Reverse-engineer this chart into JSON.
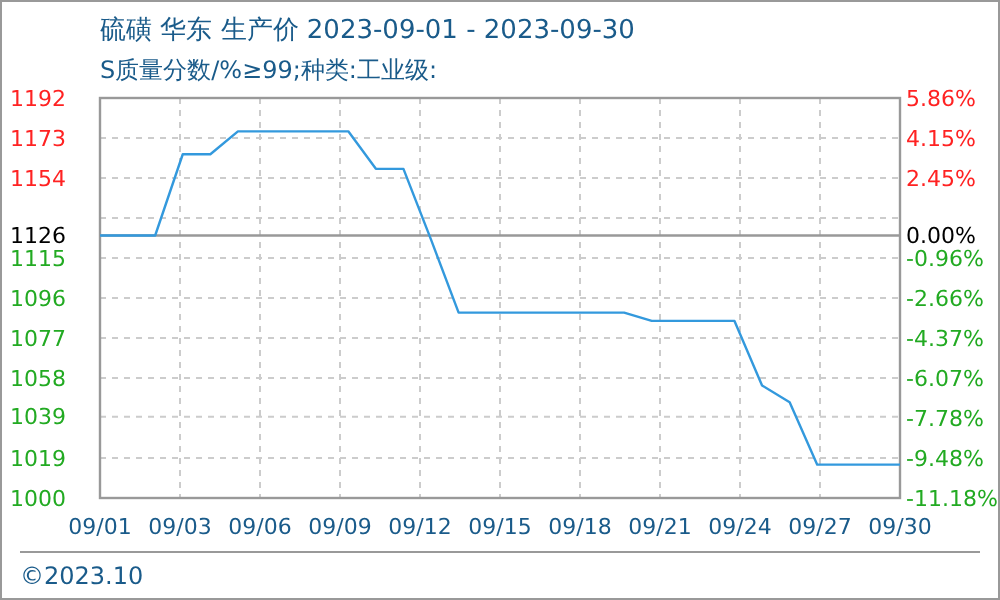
{
  "chart_data": {
    "type": "line",
    "title": "硫磺 华东 生产价 2023-09-01 - 2023-09-30",
    "subtitle": "S质量分数/%≥99;种类:工业级:",
    "annotations": [
      "©2023.10"
    ],
    "x": [
      "2023-09-01",
      "2023-09-02",
      "2023-09-03",
      "2023-09-04",
      "2023-09-05",
      "2023-09-06",
      "2023-09-07",
      "2023-09-08",
      "2023-09-09",
      "2023-09-10",
      "2023-09-11",
      "2023-09-12",
      "2023-09-13",
      "2023-09-14",
      "2023-09-15",
      "2023-09-16",
      "2023-09-17",
      "2023-09-18",
      "2023-09-19",
      "2023-09-20",
      "2023-09-21",
      "2023-09-22",
      "2023-09-23",
      "2023-09-24",
      "2023-09-25",
      "2023-09-26",
      "2023-09-27",
      "2023-09-28",
      "2023-09-29",
      "2023-09-30"
    ],
    "series": [
      {
        "color": "#3399dd",
        "values": [
          1126,
          1126,
          1126,
          1165,
          1165,
          1176,
          1176,
          1176,
          1176,
          1176,
          1158,
          1158,
          1124,
          1089,
          1089,
          1089,
          1089,
          1089,
          1089,
          1089,
          1085,
          1085,
          1085,
          1085,
          1054,
          1046,
          1016,
          1016,
          1016,
          1016
        ]
      }
    ],
    "xlim": [
      "2023-09-01",
      "2023-09-30"
    ],
    "xticks": [
      {
        "value": "2023-09-01",
        "label": "09/01"
      },
      {
        "value": "2023-09-03T21:36",
        "label": "09/03"
      },
      {
        "value": "2023-09-06T19:12",
        "label": "09/06"
      },
      {
        "value": "2023-09-09T16:48",
        "label": "09/09"
      },
      {
        "value": "2023-09-12T14:24",
        "label": "09/12"
      },
      {
        "value": "2023-09-15T12:00",
        "label": "09/15"
      },
      {
        "value": "2023-09-18T09:36",
        "label": "09/18"
      },
      {
        "value": "2023-09-21T07:12",
        "label": "09/21"
      },
      {
        "value": "2023-09-24T04:48",
        "label": "09/24"
      },
      {
        "value": "2023-09-27T02:24",
        "label": "09/27"
      },
      {
        "value": "2023-09-30",
        "label": "09/30"
      }
    ],
    "ylim": [
      1000,
      1192
    ],
    "yticks": [
      1192,
      {
        "value": 1172.8,
        "label": "1173"
      },
      {
        "value": 1153.6,
        "label": "1154"
      },
      {
        "value": 1134.4,
        "label": null
      },
      1126,
      {
        "value": 1115.2,
        "label": "1115"
      },
      1096,
      {
        "value": 1076.8,
        "label": "1077"
      },
      {
        "value": 1057.6,
        "label": "1058"
      },
      1039,
      {
        "value": 1019.2,
        "label": "1019"
      },
      1000
    ],
    "y2lim": [
      -11.18,
      5.86
    ],
    "y2ticks": [
      {
        "value": 5.86,
        "label": "5.86%"
      },
      {
        "value": 4.15,
        "label": "4.15%"
      },
      {
        "value": 2.45,
        "label": "2.45%"
      },
      {
        "value": 0,
        "label": "0.00%"
      },
      {
        "value": -0.96,
        "label": "-0.96%"
      },
      {
        "value": -2.66,
        "label": "-2.66%"
      },
      {
        "value": -4.37,
        "label": "-4.37%"
      },
      {
        "value": -6.07,
        "label": "-6.07%"
      },
      {
        "value": -7.78,
        "label": "-7.78%"
      },
      {
        "value": -9.48,
        "label": "-9.48%"
      },
      {
        "value": -11.18,
        "label": "-11.18%"
      }
    ],
    "ref_lines": [
      {
        "axis": "y",
        "value": 1126,
        "color": "#999999"
      }
    ],
    "grid": true,
    "marker": "none",
    "line_style": "solid"
  }
}
